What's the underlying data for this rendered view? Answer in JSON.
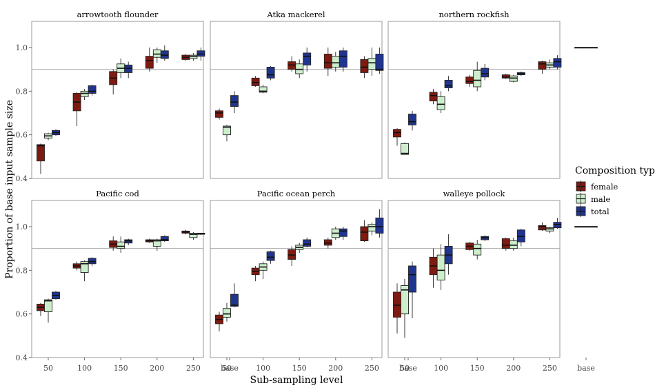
{
  "chart_data": {
    "type": "box",
    "xlabel": "Sub-sampling level",
    "ylabel": "Proportion of base input sample size",
    "categories": [
      "50",
      "100",
      "150",
      "200",
      "250",
      "base"
    ],
    "ylim": [
      0.4,
      1.12
    ],
    "yticks": [
      "0.4",
      "0.6",
      "0.8",
      "1.0"
    ],
    "reference_line": 0.9,
    "grid": false,
    "legend": {
      "title": "Composition type",
      "position": "right",
      "items": [
        {
          "name": "female",
          "color": "#7f1a10"
        },
        {
          "name": "male",
          "color": "#cdeecd"
        },
        {
          "name": "total",
          "color": "#203590"
        }
      ]
    },
    "panels": [
      {
        "title": "arrowtooth flounder",
        "boxes": [
          {
            "cat": "50",
            "female": [
              0.42,
              0.48,
              0.55,
              0.555,
              0.56
            ],
            "male": [
              0.575,
              0.585,
              0.595,
              0.605,
              0.61
            ],
            "total": [
              0.595,
              0.6,
              0.61,
              0.62,
              0.625
            ]
          },
          {
            "cat": "100",
            "female": [
              0.64,
              0.71,
              0.75,
              0.79,
              0.795
            ],
            "male": [
              0.76,
              0.775,
              0.79,
              0.8,
              0.81
            ],
            "total": [
              0.78,
              0.79,
              0.8,
              0.825,
              0.83
            ]
          },
          {
            "cat": "150",
            "female": [
              0.785,
              0.83,
              0.86,
              0.89,
              0.9
            ],
            "male": [
              0.86,
              0.885,
              0.905,
              0.925,
              0.95
            ],
            "total": [
              0.86,
              0.885,
              0.905,
              0.92,
              0.935
            ]
          },
          {
            "cat": "200",
            "female": [
              0.89,
              0.905,
              0.94,
              0.96,
              1.0
            ],
            "male": [
              0.93,
              0.955,
              0.97,
              0.99,
              1.0
            ],
            "total": [
              0.94,
              0.95,
              0.965,
              0.985,
              1.01
            ]
          },
          {
            "cat": "250",
            "female": [
              0.94,
              0.945,
              0.955,
              0.965,
              0.97
            ],
            "male": [
              0.94,
              0.95,
              0.96,
              0.965,
              0.975
            ],
            "total": [
              0.94,
              0.96,
              0.97,
              0.985,
              1.0
            ]
          },
          {
            "cat": "base",
            "female": [
              1.0,
              1.0,
              1.0,
              1.0,
              1.0
            ],
            "male": [
              1.0,
              1.0,
              1.0,
              1.0,
              1.0
            ],
            "total": [
              1.0,
              1.0,
              1.0,
              1.0,
              1.0
            ]
          }
        ]
      },
      {
        "title": "Atka mackerel",
        "boxes": [
          {
            "cat": "50",
            "female": [
              0.67,
              0.68,
              0.7,
              0.71,
              0.72
            ],
            "male": [
              0.57,
              0.6,
              0.635,
              0.64,
              0.645
            ],
            "total": [
              0.7,
              0.73,
              0.75,
              0.78,
              0.8
            ]
          },
          {
            "cat": "100",
            "female": [
              0.82,
              0.825,
              0.84,
              0.86,
              0.87
            ],
            "male": [
              0.79,
              0.795,
              0.8,
              0.82,
              0.83
            ],
            "total": [
              0.85,
              0.86,
              0.875,
              0.91,
              0.915
            ]
          },
          {
            "cat": "150",
            "female": [
              0.89,
              0.9,
              0.92,
              0.935,
              0.96
            ],
            "male": [
              0.86,
              0.88,
              0.9,
              0.925,
              0.945
            ],
            "total": [
              0.89,
              0.92,
              0.96,
              0.975,
              1.0
            ]
          },
          {
            "cat": "200",
            "female": [
              0.87,
              0.905,
              0.93,
              0.97,
              1.0
            ],
            "male": [
              0.89,
              0.91,
              0.93,
              0.96,
              0.98
            ],
            "total": [
              0.89,
              0.91,
              0.96,
              0.985,
              1.0
            ]
          },
          {
            "cat": "250",
            "female": [
              0.86,
              0.885,
              0.91,
              0.945,
              0.96
            ],
            "male": [
              0.87,
              0.9,
              0.93,
              0.95,
              1.0
            ],
            "total": [
              0.88,
              0.895,
              0.9,
              0.97,
              1.0
            ]
          },
          {
            "cat": "base",
            "female": [
              1.0,
              1.0,
              1.0,
              1.0,
              1.0
            ],
            "male": [
              1.0,
              1.0,
              1.0,
              1.0,
              1.0
            ],
            "total": [
              1.0,
              1.0,
              1.0,
              1.0,
              1.0
            ]
          }
        ]
      },
      {
        "title": "northern rockfish",
        "boxes": [
          {
            "cat": "50",
            "female": [
              0.55,
              0.59,
              0.61,
              0.625,
              0.63
            ],
            "male": [
              0.51,
              0.51,
              0.515,
              0.56,
              0.565
            ],
            "total": [
              0.62,
              0.645,
              0.66,
              0.695,
              0.71
            ]
          },
          {
            "cat": "100",
            "female": [
              0.74,
              0.755,
              0.78,
              0.795,
              0.81
            ],
            "male": [
              0.7,
              0.715,
              0.74,
              0.775,
              0.8
            ],
            "total": [
              0.8,
              0.815,
              0.825,
              0.85,
              0.87
            ]
          },
          {
            "cat": "150",
            "female": [
              0.82,
              0.835,
              0.845,
              0.865,
              0.875
            ],
            "male": [
              0.8,
              0.82,
              0.85,
              0.895,
              0.935
            ],
            "total": [
              0.85,
              0.865,
              0.88,
              0.905,
              0.925
            ]
          },
          {
            "cat": "200",
            "female": [
              0.855,
              0.86,
              0.865,
              0.875,
              0.88
            ],
            "male": [
              0.84,
              0.845,
              0.86,
              0.87,
              0.875
            ],
            "total": [
              0.87,
              0.875,
              0.88,
              0.885,
              0.89
            ]
          },
          {
            "cat": "250",
            "female": [
              0.88,
              0.9,
              0.925,
              0.935,
              0.94
            ],
            "male": [
              0.9,
              0.91,
              0.92,
              0.93,
              0.945
            ],
            "total": [
              0.9,
              0.91,
              0.935,
              0.95,
              0.965
            ]
          },
          {
            "cat": "base",
            "female": [
              1.0,
              1.0,
              1.0,
              1.0,
              1.0
            ],
            "male": [
              1.0,
              1.0,
              1.0,
              1.0,
              1.0
            ],
            "total": [
              1.0,
              1.0,
              1.0,
              1.0,
              1.0
            ]
          }
        ]
      },
      {
        "title": "Pacific cod",
        "boxes": [
          {
            "cat": "50",
            "female": [
              0.59,
              0.615,
              0.63,
              0.645,
              0.65
            ],
            "male": [
              0.56,
              0.61,
              0.66,
              0.665,
              0.67
            ],
            "total": [
              0.665,
              0.67,
              0.685,
              0.7,
              0.705
            ]
          },
          {
            "cat": "100",
            "female": [
              0.8,
              0.81,
              0.82,
              0.83,
              0.84
            ],
            "male": [
              0.75,
              0.79,
              0.83,
              0.84,
              0.845
            ],
            "total": [
              0.82,
              0.83,
              0.84,
              0.855,
              0.86
            ]
          },
          {
            "cat": "150",
            "female": [
              0.89,
              0.905,
              0.92,
              0.935,
              0.955
            ],
            "male": [
              0.88,
              0.9,
              0.91,
              0.93,
              0.955
            ],
            "total": [
              0.915,
              0.925,
              0.935,
              0.94,
              0.945
            ]
          },
          {
            "cat": "200",
            "female": [
              0.925,
              0.93,
              0.935,
              0.94,
              0.945
            ],
            "male": [
              0.89,
              0.91,
              0.935,
              0.94,
              0.945
            ],
            "total": [
              0.93,
              0.935,
              0.94,
              0.955,
              0.96
            ]
          },
          {
            "cat": "250",
            "female": [
              0.965,
              0.97,
              0.975,
              0.98,
              0.985
            ],
            "male": [
              0.94,
              0.95,
              0.965,
              0.97,
              0.975
            ],
            "total": [
              0.962,
              0.965,
              0.968,
              0.97,
              0.972
            ]
          },
          {
            "cat": "base",
            "female": [
              1.0,
              1.0,
              1.0,
              1.0,
              1.0
            ],
            "male": [
              1.0,
              1.0,
              1.0,
              1.0,
              1.0
            ],
            "total": [
              1.0,
              1.0,
              1.0,
              1.0,
              1.0
            ]
          }
        ]
      },
      {
        "title": "Pacific ocean perch",
        "boxes": [
          {
            "cat": "50",
            "female": [
              0.52,
              0.555,
              0.575,
              0.595,
              0.61
            ],
            "male": [
              0.565,
              0.585,
              0.6,
              0.625,
              0.65
            ],
            "total": [
              0.63,
              0.635,
              0.64,
              0.69,
              0.74
            ]
          },
          {
            "cat": "100",
            "female": [
              0.75,
              0.78,
              0.795,
              0.81,
              0.82
            ],
            "male": [
              0.76,
              0.8,
              0.815,
              0.83,
              0.84
            ],
            "total": [
              0.83,
              0.845,
              0.86,
              0.885,
              0.89
            ]
          },
          {
            "cat": "150",
            "female": [
              0.82,
              0.85,
              0.87,
              0.895,
              0.91
            ],
            "male": [
              0.88,
              0.895,
              0.905,
              0.915,
              0.925
            ],
            "total": [
              0.905,
              0.91,
              0.92,
              0.94,
              0.95
            ]
          },
          {
            "cat": "200",
            "female": [
              0.9,
              0.915,
              0.925,
              0.94,
              0.95
            ],
            "male": [
              0.94,
              0.95,
              0.97,
              0.99,
              1.0
            ],
            "total": [
              0.94,
              0.955,
              0.98,
              0.99,
              1.0
            ]
          },
          {
            "cat": "250",
            "female": [
              0.93,
              0.935,
              0.975,
              1.0,
              1.03
            ],
            "male": [
              0.96,
              0.98,
              1.0,
              1.01,
              1.02
            ],
            "total": [
              0.95,
              0.97,
              1.0,
              1.04,
              1.08
            ]
          },
          {
            "cat": "base",
            "female": [
              1.0,
              1.0,
              1.0,
              1.0,
              1.0
            ],
            "male": [
              1.0,
              1.0,
              1.0,
              1.0,
              1.0
            ],
            "total": [
              1.0,
              1.0,
              1.0,
              1.0,
              1.0
            ]
          }
        ]
      },
      {
        "title": "walleye pollock",
        "boxes": [
          {
            "cat": "50",
            "female": [
              0.51,
              0.585,
              0.64,
              0.7,
              0.74
            ],
            "male": [
              0.49,
              0.6,
              0.71,
              0.73,
              0.76
            ],
            "total": [
              0.58,
              0.7,
              0.78,
              0.82,
              0.84
            ]
          },
          {
            "cat": "100",
            "female": [
              0.72,
              0.78,
              0.82,
              0.86,
              0.9
            ],
            "male": [
              0.71,
              0.755,
              0.8,
              0.87,
              0.92
            ],
            "total": [
              0.78,
              0.83,
              0.87,
              0.91,
              0.965
            ]
          },
          {
            "cat": "150",
            "female": [
              0.89,
              0.895,
              0.91,
              0.925,
              0.93
            ],
            "male": [
              0.85,
              0.87,
              0.9,
              0.92,
              0.94
            ],
            "total": [
              0.935,
              0.94,
              0.95,
              0.955,
              0.96
            ]
          },
          {
            "cat": "200",
            "female": [
              0.89,
              0.9,
              0.915,
              0.945,
              0.95
            ],
            "male": [
              0.89,
              0.9,
              0.915,
              0.935,
              0.95
            ],
            "total": [
              0.91,
              0.93,
              0.955,
              0.985,
              0.99
            ]
          },
          {
            "cat": "250",
            "female": [
              0.98,
              0.985,
              1.0,
              1.005,
              1.02
            ],
            "male": [
              0.97,
              0.98,
              0.99,
              0.995,
              1.0
            ],
            "total": [
              0.99,
              0.995,
              1.01,
              1.02,
              1.04
            ]
          },
          {
            "cat": "base",
            "female": [
              1.0,
              1.0,
              1.0,
              1.0,
              1.0
            ],
            "male": [
              1.0,
              1.0,
              1.0,
              1.0,
              1.0
            ],
            "total": [
              1.0,
              1.0,
              1.0,
              1.0,
              1.0
            ]
          }
        ]
      }
    ]
  }
}
